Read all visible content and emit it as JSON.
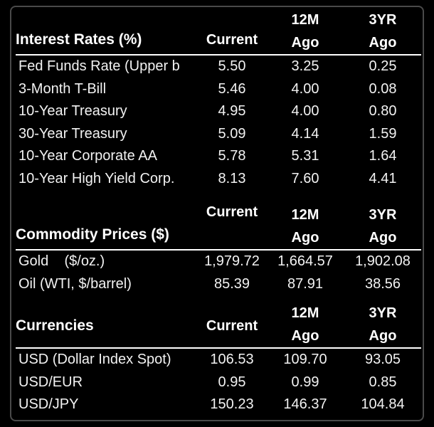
{
  "interest_rates": {
    "title": "Interest Rates (%)",
    "col_current": "Current",
    "col_12m_l1": "12M",
    "col_12m_l2": "Ago",
    "col_3yr_l1": "3YR",
    "col_3yr_l2": "Ago",
    "rows": [
      {
        "label": "Fed Funds Rate (Upper b",
        "current": "5.50",
        "m12": "3.25",
        "yr3": "0.25"
      },
      {
        "label": "3-Month T-Bill",
        "current": "5.46",
        "m12": "4.00",
        "yr3": "0.08"
      },
      {
        "label": "10-Year Treasury",
        "current": "4.95",
        "m12": "4.00",
        "yr3": "0.80"
      },
      {
        "label": "30-Year Treasury",
        "current": "5.09",
        "m12": "4.14",
        "yr3": "1.59"
      },
      {
        "label": "10-Year Corporate AA",
        "current": "5.78",
        "m12": "5.31",
        "yr3": "1.64"
      },
      {
        "label": "10-Year High Yield Corp.",
        "current": "8.13",
        "m12": "7.60",
        "yr3": "4.41"
      }
    ]
  },
  "commodity_prices": {
    "title": "Commodity Prices ($)",
    "col_current": "Current",
    "col_12m_l1": "12M",
    "col_12m_l2": "Ago",
    "col_3yr_l1": "3YR",
    "col_3yr_l2": "Ago",
    "rows": [
      {
        "label": "Gold    ($/oz.)",
        "current": "1,979.72",
        "m12": "1,664.57",
        "yr3": "1,902.08"
      },
      {
        "label": "Oil (WTI, $/barrel)",
        "current": "85.39",
        "m12": "87.91",
        "yr3": "38.56"
      }
    ]
  },
  "currencies": {
    "title": "Currencies",
    "col_current": "Current",
    "col_12m_l1": "12M",
    "col_12m_l2": "Ago",
    "col_3yr_l1": "3YR",
    "col_3yr_l2": "Ago",
    "rows": [
      {
        "label": "USD (Dollar Index Spot)",
        "current": "106.53",
        "m12": "109.70",
        "yr3": "93.05"
      },
      {
        "label": "USD/EUR",
        "current": "0.95",
        "m12": "0.99",
        "yr3": "0.85"
      },
      {
        "label": "USD/JPY",
        "current": "150.23",
        "m12": "146.37",
        "yr3": "104.84"
      }
    ]
  }
}
